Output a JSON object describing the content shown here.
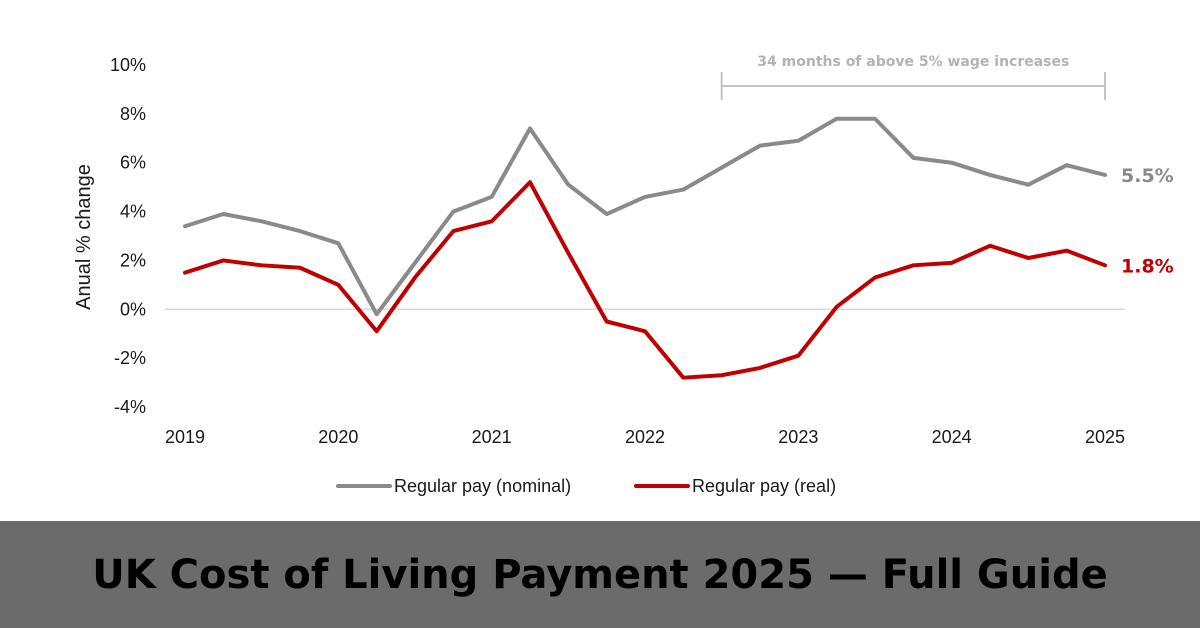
{
  "chart_data": {
    "type": "line",
    "ylabel": "Anual % change",
    "xlabel": "",
    "ylim": [
      -4,
      10
    ],
    "y_ticks": [
      "10%",
      "8%",
      "6%",
      "4%",
      "2%",
      "0%",
      "-2%",
      "-4%"
    ],
    "y_tick_values": [
      10,
      8,
      6,
      4,
      2,
      0,
      -2,
      -4
    ],
    "x_tick_labels": [
      "2019",
      "2020",
      "2021",
      "2022",
      "2023",
      "2024",
      "2025"
    ],
    "x_tick_values": [
      2019,
      2020,
      2021,
      2022,
      2023,
      2024,
      2025
    ],
    "x": [
      2019.0,
      2019.25,
      2019.5,
      2019.75,
      2020.0,
      2020.25,
      2020.5,
      2020.75,
      2021.0,
      2021.25,
      2021.5,
      2021.75,
      2022.0,
      2022.25,
      2022.5,
      2022.75,
      2023.0,
      2023.25,
      2023.5,
      2023.75,
      2024.0,
      2024.25,
      2024.5,
      2024.75,
      2025.0
    ],
    "grid": false,
    "legend_position": "bottom",
    "series": [
      {
        "name": "Regular pay (nominal)",
        "color": "#8a8a8a",
        "end_label": "5.5%",
        "values": [
          3.4,
          3.9,
          3.6,
          3.2,
          2.7,
          -0.2,
          1.9,
          4.0,
          4.6,
          7.4,
          5.1,
          3.9,
          4.6,
          4.9,
          5.8,
          6.7,
          6.9,
          7.8,
          7.8,
          6.2,
          6.0,
          5.5,
          5.1,
          5.9,
          5.5
        ]
      },
      {
        "name": "Regular pay (real)",
        "color": "#c00000",
        "end_label": "1.8%",
        "values": [
          1.5,
          2.0,
          1.8,
          1.7,
          1.0,
          -0.9,
          1.3,
          3.2,
          3.6,
          5.2,
          2.3,
          -0.5,
          -0.9,
          -2.8,
          -2.7,
          -2.4,
          -1.9,
          0.1,
          1.3,
          1.8,
          1.9,
          2.6,
          2.1,
          2.4,
          1.8
        ]
      }
    ],
    "annotation": {
      "text": "34 months of above 5% wage increases",
      "x_start": 2022.5,
      "x_end": 2025.0
    }
  },
  "banner": {
    "title": "UK Cost of Living Payment 2025 — Full Guide"
  }
}
